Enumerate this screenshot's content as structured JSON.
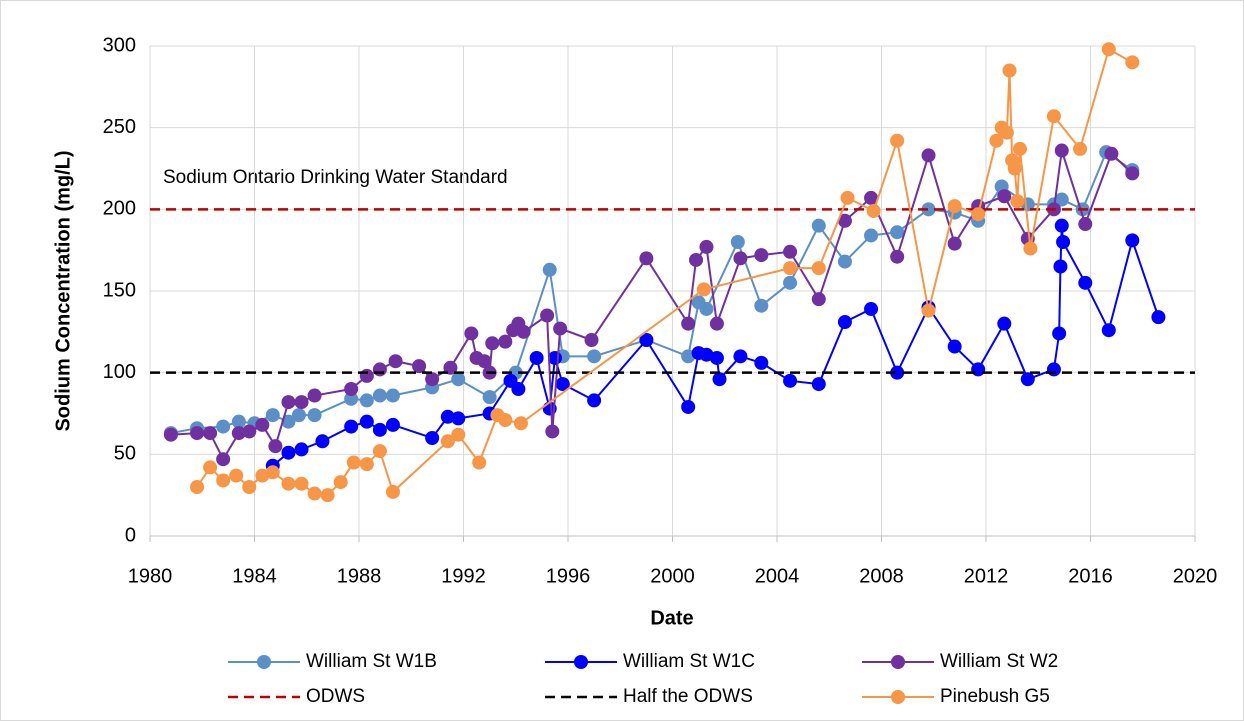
{
  "chart_data": {
    "type": "line",
    "xlabel": "Date",
    "ylabel": "Sodium Concentration (mg/L)",
    "annotation": "Sodium Ontario Drinking Water Standard",
    "xlim": [
      1980,
      2020
    ],
    "xticks": [
      1980,
      1984,
      1988,
      1992,
      1996,
      2000,
      2004,
      2008,
      2012,
      2016,
      2020
    ],
    "ylim": [
      0,
      300
    ],
    "yticks": [
      0,
      50,
      100,
      150,
      200,
      250,
      300
    ],
    "grid": true,
    "series": [
      {
        "name": "William St W1B",
        "color": "#5b8fc7",
        "dashed": false,
        "markers": true,
        "x": [
          1980.8,
          1981.8,
          1982.8,
          1983.4,
          1984,
          1984.7,
          1985.3,
          1985.7,
          1986.3,
          1987.7,
          1988.3,
          1988.8,
          1989.3,
          1990.8,
          1991.8,
          1993,
          1994,
          1995.3,
          1995.8,
          1997,
          1999,
          2000.6,
          2001,
          2001.3,
          2002.5,
          2003.4,
          2004.5,
          2005.6,
          2006.6,
          2007.6,
          2008.6,
          2009.8,
          2010.8,
          2011.7,
          2012.6,
          2013.6,
          2014.6,
          2014.9,
          2015.7,
          2016.6,
          2017.6
        ],
        "values": [
          63,
          66,
          67,
          70,
          69,
          74,
          70,
          74,
          74,
          84,
          83,
          86,
          86,
          91,
          96,
          85,
          100,
          163,
          110,
          110,
          120,
          110,
          143,
          139,
          180,
          141,
          155,
          190,
          168,
          184,
          186,
          200,
          198,
          193,
          214,
          203,
          203,
          206,
          200,
          235,
          224
        ]
      },
      {
        "name": "William St W1C",
        "color": "#0000ff",
        "dashed": false,
        "markers": true,
        "x": [
          1984.7,
          1985.3,
          1985.8,
          1986.6,
          1987.7,
          1988.3,
          1988.8,
          1989.3,
          1990.8,
          1991.4,
          1991.8,
          1993,
          1993.8,
          1994.1,
          1994.8,
          1995.3,
          1995.5,
          1995.8,
          1997,
          1999,
          2000.6,
          2001,
          2001.3,
          2001.7,
          2001.8,
          2002.6,
          2003.4,
          2004.5,
          2005.6,
          2006.6,
          2007.6,
          2008.6,
          2009.8,
          2010.8,
          2011.7,
          2012.7,
          2013.6,
          2014.6,
          2014.8,
          2014.85,
          2014.9,
          2014.95,
          2015.8,
          2016.7,
          2017.6,
          2018.6
        ],
        "values": [
          43,
          51,
          53,
          58,
          67,
          70,
          65,
          68,
          60,
          73,
          72,
          75,
          95,
          90,
          109,
          78,
          109,
          93,
          83,
          120,
          79,
          112,
          111,
          109,
          96,
          110,
          106,
          95,
          93,
          131,
          139,
          100,
          140,
          116,
          102,
          130,
          96,
          102,
          124,
          165,
          190,
          180,
          155,
          126,
          181,
          134
        ]
      },
      {
        "name": "William St W2",
        "color": "#7030a0",
        "dashed": false,
        "markers": true,
        "x": [
          1980.8,
          1981.8,
          1982.3,
          1982.8,
          1983.4,
          1983.8,
          1984.3,
          1984.8,
          1985.3,
          1985.8,
          1986.3,
          1987.7,
          1988.3,
          1988.8,
          1989.4,
          1990.3,
          1990.8,
          1991.5,
          1992.3,
          1992.5,
          1992.8,
          1993,
          1993.1,
          1993.6,
          1993.9,
          1994.1,
          1994.3,
          1995.2,
          1995.4,
          1995.7,
          1996.9,
          1999,
          2000.6,
          2000.9,
          2001.3,
          2001.7,
          2002.6,
          2003.4,
          2004.5,
          2005.6,
          2006.6,
          2007.6,
          2008.6,
          2009.8,
          2010.8,
          2011.7,
          2012.7,
          2013.6,
          2014.6,
          2014.9,
          2015.8,
          2016.8,
          2017.6
        ],
        "values": [
          62,
          63,
          63,
          47,
          63,
          64,
          68,
          55,
          82,
          82,
          86,
          90,
          98,
          102,
          107,
          104,
          96,
          103,
          124,
          109,
          107,
          100,
          118,
          119,
          126,
          130,
          125,
          135,
          64,
          127,
          120,
          170,
          130,
          169,
          177,
          130,
          170,
          172,
          174,
          145,
          193,
          207,
          171,
          233,
          179,
          202,
          208,
          182,
          200,
          236,
          191,
          234,
          222
        ]
      },
      {
        "name": "ODWS",
        "color": "#c00000",
        "dashed": true,
        "markers": false,
        "x": [
          1980,
          2020
        ],
        "values": [
          200,
          200
        ]
      },
      {
        "name": "Half the ODWS",
        "color": "#000000",
        "dashed": true,
        "markers": false,
        "x": [
          1980,
          2020
        ],
        "values": [
          100,
          100
        ]
      },
      {
        "name": "Pinebush G5",
        "color": "#f79646",
        "dashed": false,
        "markers": true,
        "x": [
          1981.8,
          1982.3,
          1982.8,
          1983.3,
          1983.8,
          1984.3,
          1984.7,
          1985.3,
          1985.8,
          1986.3,
          1986.8,
          1987.3,
          1987.8,
          1988.3,
          1988.8,
          1989.3,
          1991.4,
          1991.8,
          1992.6,
          1993.3,
          1993.6,
          1994.2,
          2001.2,
          2004.5,
          2005.6,
          2006.7,
          2007.7,
          2008.6,
          2009.8,
          2010.8,
          2011.7,
          2012.4,
          2012.6,
          2012.8,
          2012.9,
          2013.0,
          2013.1,
          2013.2,
          2013.3,
          2013.7,
          2014.6,
          2015.6,
          2016.7,
          2017.6
        ],
        "values": [
          30,
          42,
          34,
          37,
          30,
          37,
          39,
          32,
          32,
          26,
          25,
          33,
          45,
          44,
          52,
          27,
          58,
          62,
          45,
          74,
          71,
          69,
          151,
          164,
          164,
          207,
          199,
          242,
          138,
          202,
          197,
          242,
          250,
          247,
          285,
          230,
          225,
          205,
          237,
          176,
          257,
          237,
          298,
          290
        ]
      }
    ]
  }
}
